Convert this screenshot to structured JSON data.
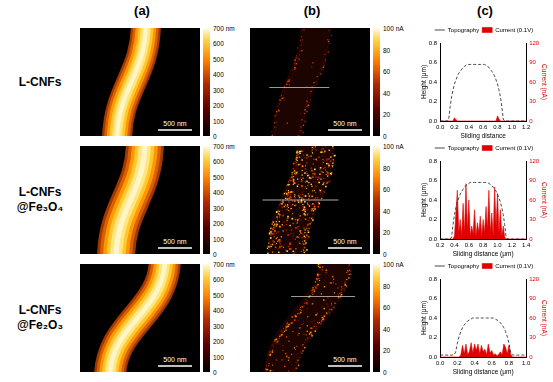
{
  "column_heads": [
    "(a)",
    "(b)",
    "(c)"
  ],
  "rows": [
    {
      "label_lines": [
        "L-CNFs"
      ],
      "topography": {
        "scale_bar": "500 nm",
        "colorbar": {
          "range": [
            0,
            700
          ],
          "ticks": [
            0,
            100,
            200,
            300,
            400,
            500,
            600,
            {
              "value": 700,
              "label": "700 nm"
            }
          ]
        }
      },
      "current_map": {
        "scale_bar": "500 nm",
        "colorbar": {
          "range": [
            0,
            100
          ],
          "ticks": [
            0,
            20,
            40,
            60,
            80,
            {
              "value": 100,
              "label": "100 nA"
            }
          ]
        }
      }
    },
    {
      "label_lines": [
        "L-CNFs",
        "@Fe₃O₄"
      ],
      "topography": {
        "scale_bar": "500 nm",
        "colorbar": {
          "range": [
            0,
            700
          ],
          "ticks": [
            0,
            100,
            200,
            300,
            400,
            500,
            600,
            {
              "value": 700,
              "label": "700 nm"
            }
          ]
        }
      },
      "current_map": {
        "scale_bar": "500 nm",
        "colorbar": {
          "range": [
            0,
            100
          ],
          "ticks": [
            0,
            20,
            40,
            60,
            80,
            {
              "value": 100,
              "label": "100 nA"
            }
          ]
        }
      }
    },
    {
      "label_lines": [
        "L-CNFs",
        "@Fe₂O₃"
      ],
      "topography": {
        "scale_bar": "500 nm",
        "colorbar": {
          "range": [
            0,
            700
          ],
          "ticks": [
            0,
            100,
            200,
            300,
            400,
            500,
            600,
            {
              "value": 700,
              "label": "700 nm"
            }
          ]
        }
      },
      "current_map": {
        "scale_bar": "500 nm",
        "colorbar": {
          "range": [
            0,
            100
          ],
          "ticks": [
            0,
            20,
            40,
            60,
            80,
            {
              "value": 100,
              "label": "100 nA"
            }
          ]
        }
      }
    }
  ],
  "chart_data": [
    {
      "type": "line",
      "xlabel": "Sliding distance",
      "ylabel": "Height (μm)",
      "y2label": "Current (nA)",
      "x": [
        0,
        0.02,
        0.04,
        0.06,
        0.08,
        0.1,
        0.12,
        0.14,
        0.16,
        0.18,
        0.2,
        0.22,
        0.24,
        0.26,
        0.28,
        0.3,
        0.32,
        0.34,
        0.36,
        0.38,
        0.4,
        0.42,
        0.44,
        0.46,
        0.48,
        0.5,
        0.52,
        0.54,
        0.56,
        0.58,
        0.6,
        0.62,
        0.64,
        0.66,
        0.68,
        0.7,
        0.72,
        0.74,
        0.76,
        0.78,
        0.8,
        0.82,
        0.84,
        0.86,
        0.88,
        0.9,
        0.92,
        0.94,
        0.96,
        0.98,
        1,
        1.02,
        1.04,
        1.06,
        1.08,
        1.1,
        1.12,
        1.14,
        1.16,
        1.18,
        1.2
      ],
      "series": [
        {
          "name": "Topography",
          "type": "line",
          "line_style": "dashed",
          "color": "#333333",
          "values": [
            0,
            0,
            0,
            0,
            0,
            0,
            0.02,
            0.15,
            0.25,
            0.32,
            0.38,
            0.42,
            0.46,
            0.49,
            0.51,
            0.53,
            0.55,
            0.56,
            0.57,
            0.58,
            0.58,
            0.58,
            0.58,
            0.58,
            0.58,
            0.58,
            0.58,
            0.58,
            0.58,
            0.58,
            0.58,
            0.58,
            0.57,
            0.56,
            0.55,
            0.53,
            0.51,
            0.49,
            0.46,
            0.42,
            0.38,
            0.32,
            0.25,
            0.15,
            0.02,
            0,
            0,
            0,
            0,
            0,
            0,
            0,
            0,
            0,
            0,
            0,
            0,
            0,
            0,
            0,
            0
          ]
        },
        {
          "name": "Current (0.1V)",
          "type": "area",
          "axis": "y2",
          "color": "#e00000",
          "values": [
            0,
            0,
            0,
            0,
            0,
            0,
            0,
            0,
            0,
            0,
            5,
            2,
            0,
            0,
            0,
            0,
            0,
            0,
            0,
            0,
            0,
            0,
            0,
            0,
            0,
            0,
            0,
            0,
            0,
            0,
            0,
            0,
            0,
            0,
            0,
            0,
            0,
            0,
            0,
            0,
            8,
            3,
            0,
            0,
            0,
            0,
            0,
            0,
            0,
            0,
            0,
            0,
            0,
            0,
            0,
            0,
            0,
            0,
            0,
            0,
            0
          ]
        }
      ],
      "xlim": [
        0,
        1.2
      ],
      "xticks": [
        {
          "value": 0,
          "label": "0.0"
        },
        0.2,
        0.4,
        0.6,
        0.8,
        {
          "value": 1,
          "label": "1.0"
        },
        1.2
      ],
      "ylim": [
        0,
        0.8
      ],
      "yticks": [
        {
          "value": 0,
          "label": "0.0"
        },
        0.2,
        0.4,
        0.6,
        0.8
      ],
      "y2lim": [
        0,
        120
      ],
      "y2ticks": [
        0,
        30,
        60,
        90,
        120
      ],
      "grid": false,
      "legend": "top"
    },
    {
      "type": "line",
      "xlabel": "Sliding distance (μm)",
      "ylabel": "Height (μm)",
      "y2label": "Current (nA)",
      "x": [
        0.2,
        0.22,
        0.24,
        0.26,
        0.28,
        0.3,
        0.32,
        0.34,
        0.36,
        0.38,
        0.4,
        0.42,
        0.44,
        0.46,
        0.48,
        0.5,
        0.52,
        0.54,
        0.56,
        0.58,
        0.6,
        0.62,
        0.64,
        0.66,
        0.68,
        0.7,
        0.72,
        0.74,
        0.76,
        0.78,
        0.8,
        0.82,
        0.84,
        0.86,
        0.88,
        0.9,
        0.92,
        0.94,
        0.96,
        0.98,
        1,
        1.02,
        1.04,
        1.06,
        1.08,
        1.1,
        1.12,
        1.14,
        1.16,
        1.18,
        1.2,
        1.22,
        1.24,
        1.26,
        1.28,
        1.3,
        1.32,
        1.34,
        1.36,
        1.38,
        1.4
      ],
      "series": [
        {
          "name": "Topography",
          "type": "line",
          "line_style": "dashed",
          "color": "#333333",
          "values": [
            0,
            0,
            0,
            0,
            0,
            0,
            0,
            0,
            0.02,
            0.15,
            0.25,
            0.32,
            0.38,
            0.42,
            0.46,
            0.49,
            0.51,
            0.53,
            0.55,
            0.56,
            0.57,
            0.58,
            0.58,
            0.58,
            0.58,
            0.58,
            0.58,
            0.58,
            0.58,
            0.58,
            0.58,
            0.58,
            0.58,
            0.58,
            0.57,
            0.56,
            0.55,
            0.53,
            0.51,
            0.49,
            0.46,
            0.42,
            0.38,
            0.32,
            0.25,
            0.15,
            0.02,
            0,
            0,
            0,
            0,
            0,
            0,
            0,
            0,
            0,
            0,
            0,
            0,
            0,
            0
          ]
        },
        {
          "name": "Current (0.1V)",
          "type": "area",
          "axis": "y2",
          "color": "#e00000",
          "values": [
            0,
            0,
            0,
            0,
            0,
            0,
            0,
            0,
            0,
            0,
            5,
            40,
            75,
            10,
            30,
            5,
            55,
            10,
            85,
            15,
            60,
            5,
            20,
            8,
            45,
            5,
            25,
            10,
            35,
            5,
            30,
            10,
            50,
            15,
            75,
            10,
            40,
            5,
            80,
            20,
            70,
            10,
            45,
            5,
            20,
            3,
            0,
            0,
            0,
            0,
            0,
            0,
            0,
            0,
            0,
            0,
            0,
            0,
            0,
            0,
            0
          ]
        }
      ],
      "xlim": [
        0.2,
        1.4
      ],
      "xticks": [
        0.2,
        0.4,
        0.6,
        0.8,
        {
          "value": 1,
          "label": "1.0"
        },
        1.2,
        1.4
      ],
      "ylim": [
        0,
        0.8
      ],
      "yticks": [
        {
          "value": 0,
          "label": "0.0"
        },
        0.2,
        0.4,
        0.6,
        0.8
      ],
      "y2lim": [
        0,
        120
      ],
      "y2ticks": [
        0,
        30,
        60,
        90,
        120
      ],
      "grid": false,
      "legend": "top"
    },
    {
      "type": "line",
      "xlabel": "Sliding distance (μm)",
      "ylabel": "Height (μm)",
      "y2label": "Current (nA)",
      "x": [
        0,
        0.02,
        0.04,
        0.06,
        0.08,
        0.1,
        0.12,
        0.14,
        0.16,
        0.18,
        0.2,
        0.22,
        0.24,
        0.26,
        0.28,
        0.3,
        0.32,
        0.34,
        0.36,
        0.38,
        0.4,
        0.42,
        0.44,
        0.46,
        0.48,
        0.5,
        0.52,
        0.54,
        0.56,
        0.58,
        0.6,
        0.62,
        0.64,
        0.66,
        0.68,
        0.7,
        0.72,
        0.74,
        0.76,
        0.78,
        0.8,
        0.82,
        0.84,
        0.86,
        0.88,
        0.9,
        0.92,
        0.94,
        0.96,
        0.98,
        1
      ],
      "series": [
        {
          "name": "Topography",
          "type": "line",
          "line_style": "dashed",
          "color": "#333333",
          "values": [
            0.02,
            0.02,
            0.02,
            0.02,
            0.02,
            0.02,
            0.02,
            0.02,
            0.02,
            0.05,
            0.14,
            0.21,
            0.26,
            0.3,
            0.33,
            0.35,
            0.37,
            0.38,
            0.39,
            0.4,
            0.4,
            0.4,
            0.4,
            0.4,
            0.4,
            0.4,
            0.4,
            0.4,
            0.4,
            0.4,
            0.4,
            0.4,
            0.39,
            0.38,
            0.37,
            0.35,
            0.33,
            0.3,
            0.26,
            0.21,
            0.14,
            0.05,
            0.02,
            0.02,
            0.02,
            0.02,
            0.02,
            0.02,
            0.02,
            0.02,
            0.02
          ]
        },
        {
          "name": "Current (0.1V)",
          "type": "area",
          "axis": "y2",
          "color": "#e00000",
          "values": [
            0,
            0,
            0,
            0,
            0,
            0,
            0,
            0,
            0,
            0,
            0,
            0,
            3,
            18,
            5,
            20,
            4,
            8,
            22,
            6,
            20,
            10,
            20,
            5,
            18,
            8,
            12,
            4,
            20,
            6,
            10,
            3,
            5,
            2,
            4,
            8,
            3,
            20,
            15,
            5,
            18,
            4,
            0,
            0,
            0,
            0,
            0,
            0,
            0,
            0,
            0
          ]
        }
      ],
      "xlim": [
        0,
        1
      ],
      "xticks": [
        {
          "value": 0,
          "label": "0.0"
        },
        0.2,
        0.4,
        0.6,
        0.8,
        {
          "value": 1,
          "label": "1.0"
        }
      ],
      "ylim": [
        0,
        0.8
      ],
      "yticks": [
        {
          "value": 0,
          "label": "0.0"
        },
        0.2,
        0.4,
        0.6,
        0.8
      ],
      "y2lim": [
        0,
        120
      ],
      "y2ticks": [
        0,
        30,
        60,
        90,
        120
      ],
      "grid": false,
      "legend": "top"
    }
  ]
}
